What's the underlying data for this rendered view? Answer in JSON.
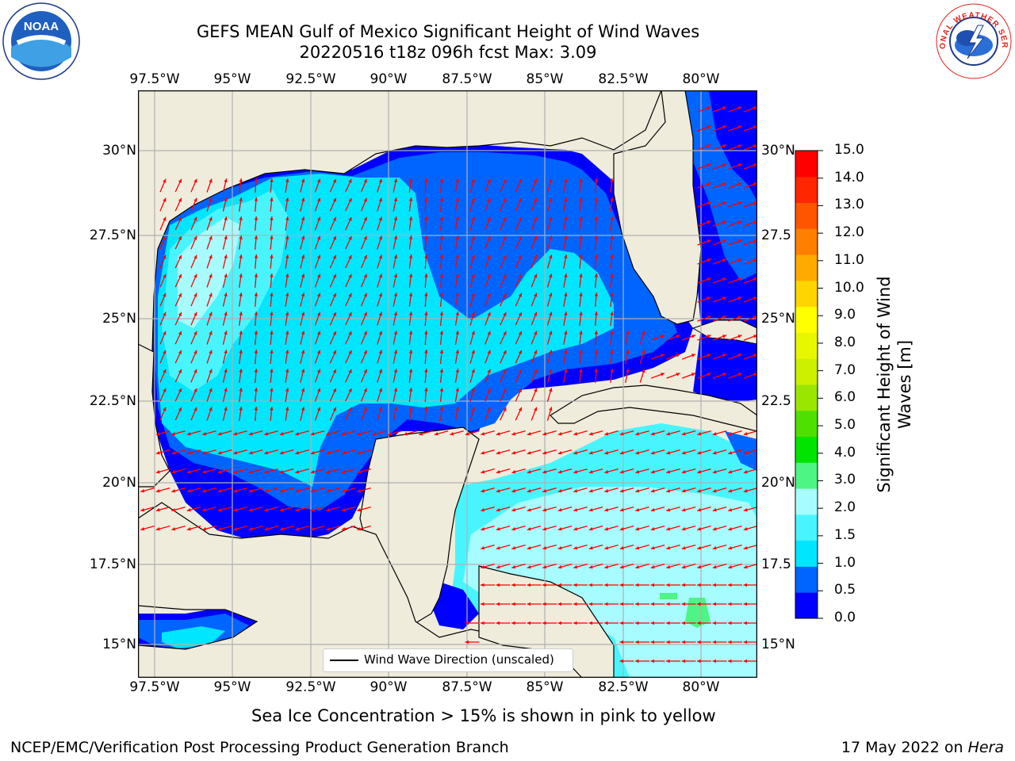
{
  "title": {
    "line1": "GEFS MEAN Gulf of Mexico Significant Height of Wind Waves",
    "line2": "20220516 t18z 096h fcst   Max: 3.09"
  },
  "map": {
    "lon_range": [
      -98.0,
      -78.0
    ],
    "lat_range": [
      14.0,
      31.7
    ],
    "lon_ticks": [
      "97.5°W",
      "95°W",
      "92.5°W",
      "90°W",
      "87.5°W",
      "85°W",
      "82.5°W",
      "80°W"
    ],
    "lat_ticks_left": [
      "30°N",
      "27.5°N",
      "25°N",
      "22.5°N",
      "20°N",
      "17.5°N",
      "15°N"
    ],
    "lat_ticks_right": [
      "30°N",
      "27.5",
      "25°N",
      "22.5",
      "20°N",
      "17.5",
      "15°N"
    ],
    "grid": true,
    "land_color": "#efecdc",
    "arrow_color": "#ff0000"
  },
  "colorbar": {
    "label": "Significant Height of Wind Waves [m]",
    "ticks": [
      "15.0",
      "14.0",
      "13.0",
      "12.0",
      "11.0",
      "10.0",
      "9.0",
      "8.0",
      "7.0",
      "6.0",
      "5.0",
      "4.0",
      "3.0",
      "2.0",
      "1.5",
      "1.0",
      "0.5",
      "0.0"
    ],
    "colors_bottom_to_top": [
      "#0000ff",
      "#0064ff",
      "#00e6ff",
      "#48f5ff",
      "#a6fcff",
      "#4cf584",
      "#00e400",
      "#4ee000",
      "#9ae600",
      "#cdf000",
      "#e7f700",
      "#ffff00",
      "#ffd500",
      "#ffaa00",
      "#ff8000",
      "#ff5500",
      "#ff2600",
      "#ff0000"
    ]
  },
  "legend": {
    "label": "Wind Wave Direction (unscaled)"
  },
  "note": "Sea Ice Concentration > 15% is shown in pink to yellow",
  "footer": {
    "left": "NCEP/EMC/Verification Post Processing Product Generation Branch",
    "date": "17 May 2022 on ",
    "host": "Hera"
  },
  "logos": {
    "left": {
      "icon": "noaa-logo-icon",
      "text": "NOAA"
    },
    "right": {
      "icon": "nws-logo-icon",
      "text": "NATIONAL WEATHER SERVICE"
    }
  }
}
